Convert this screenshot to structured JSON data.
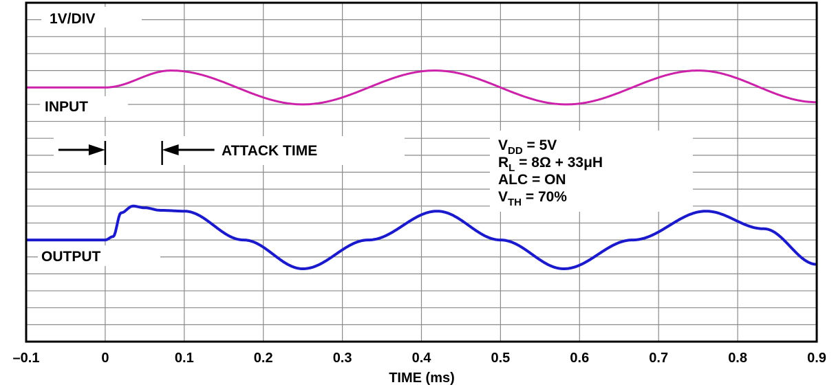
{
  "chart_data": {
    "type": "line",
    "title": "",
    "xlabel": "TIME (ms)",
    "ylabel": "",
    "xlim": [
      -0.1,
      0.9
    ],
    "x_ticks": [
      "–0.1",
      "0",
      "0.1",
      "0.2",
      "0.3",
      "0.4",
      "0.5",
      "0.6",
      "0.7",
      "0.8",
      "0.9"
    ],
    "y_divisions": 20,
    "grid": true,
    "scale_label": "1V/DIV",
    "series": [
      {
        "name": "INPUT",
        "color": "#cc22aa",
        "unit": "V",
        "baseline": 0,
        "points": [
          [
            -0.1,
            0
          ],
          [
            0.0,
            0
          ],
          [
            0.0833,
            1.0
          ],
          [
            0.25,
            -1.0
          ],
          [
            0.4167,
            1.0
          ],
          [
            0.5833,
            -1.0
          ],
          [
            0.75,
            1.0
          ],
          [
            0.9,
            -0.87
          ]
        ]
      },
      {
        "name": "OUTPUT",
        "color": "#1a1acc",
        "unit": "V",
        "baseline": 0,
        "points": [
          [
            -0.1,
            0
          ],
          [
            0.0,
            0
          ],
          [
            0.01,
            0.2
          ],
          [
            0.02,
            1.6
          ],
          [
            0.035,
            2.0
          ],
          [
            0.05,
            1.9
          ],
          [
            0.07,
            1.75
          ],
          [
            0.1,
            1.7
          ],
          [
            0.175,
            0
          ],
          [
            0.25,
            -1.7
          ],
          [
            0.333,
            0
          ],
          [
            0.42,
            1.7
          ],
          [
            0.5,
            0
          ],
          [
            0.58,
            -1.7
          ],
          [
            0.667,
            0
          ],
          [
            0.76,
            1.7
          ],
          [
            0.833,
            0.66
          ],
          [
            0.9,
            -1.44
          ]
        ]
      }
    ],
    "annotations": {
      "attack_time": "ATTACK TIME",
      "attack_start_ms": 0.0,
      "attack_end_ms": 0.072,
      "conditions": {
        "vdd": {
          "main": "V",
          "sub": "DD",
          "rest": " = 5V"
        },
        "rl": {
          "main": "R",
          "sub": "L",
          "rest": " = 8Ω + 33μH"
        },
        "alc": "ALC = ON",
        "vth": {
          "main": "V",
          "sub": "TH",
          "rest": " = 70%"
        }
      }
    }
  }
}
